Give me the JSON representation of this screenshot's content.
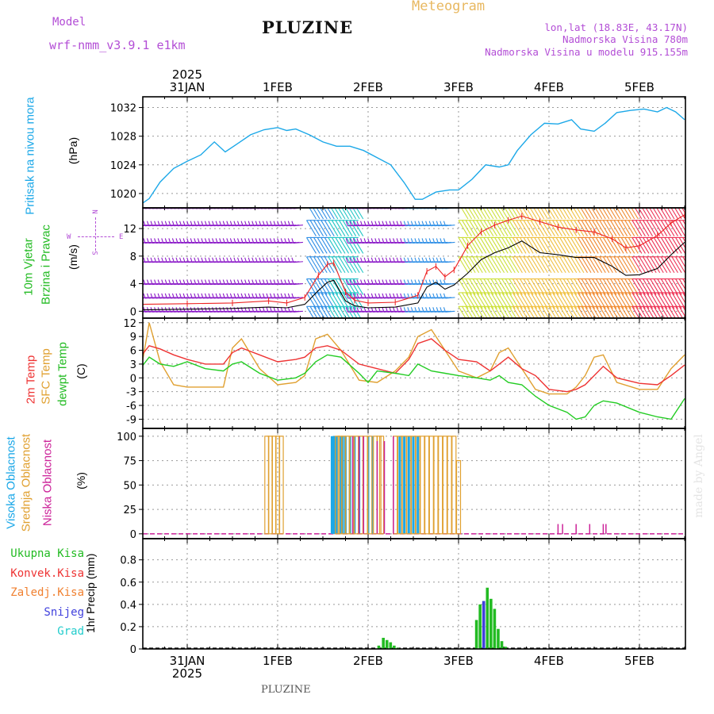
{
  "header": {
    "model_label": "Model",
    "model_name": "wrf-nmm_v3.9.1  e1km",
    "station": "PLUZINE",
    "product": "Meteogram",
    "coords": "lon,lat (18.83E, 43.17N)",
    "elevation": "Nadmorska Visina 780m",
    "model_elevation": "Nadmorska Visina u modelu 915.155m"
  },
  "footer": {
    "station": "PLUZINE",
    "credit": "made by Angel"
  },
  "colors": {
    "pressure": "#1ca8e8",
    "temp2m": "#ee3333",
    "sfc": "#e0a030",
    "dew": "#22cc22",
    "convective": "#ee3333",
    "frozen": "#f08030",
    "snow": "#4040dd",
    "grad": "#22cccc",
    "high_cloud": "#1ca8e8",
    "mid_cloud": "#e0a030",
    "low_cloud": "#cc2299",
    "wind_speed": "#000000",
    "gust": "#ee2222",
    "total_precip": "#22bb22"
  },
  "time_axis": {
    "top_year": "2025",
    "bottom_year": "2025",
    "days": [
      "31JAN",
      "1FEB",
      "2FEB",
      "3FEB",
      "4FEB",
      "5FEB"
    ]
  },
  "chart_data": [
    {
      "id": "pressure",
      "type": "line",
      "ylabel": "Pritisak na nivou mora",
      "unit": "(hPa)",
      "ylim": [
        1018,
        1033.5
      ],
      "yticks": [
        1020,
        1024,
        1028,
        1032
      ],
      "series": [
        {
          "x": [
            -0.5,
            -0.42,
            -0.3,
            -0.15,
            0,
            0.15,
            0.3,
            0.42,
            0.55,
            0.7,
            0.85,
            1.0,
            1.1,
            1.2,
            1.35,
            1.5,
            1.65,
            1.8,
            1.95,
            2.1,
            2.25,
            2.4,
            2.52,
            2.6,
            2.75,
            2.9,
            3.0,
            3.15,
            3.3,
            3.45,
            3.55,
            3.65,
            3.8,
            3.95,
            4.1,
            4.25,
            4.35,
            4.5,
            4.62,
            4.75,
            4.9,
            5.05,
            5.2,
            5.3,
            5.4,
            5.5
          ],
          "y": [
            1018.6,
            1019.3,
            1021.6,
            1023.5,
            1024.5,
            1025.4,
            1027.2,
            1025.8,
            1026.9,
            1028.2,
            1028.9,
            1029.2,
            1028.8,
            1029.0,
            1028.2,
            1027.2,
            1026.6,
            1026.6,
            1026.0,
            1025.0,
            1024.0,
            1021.5,
            1019.2,
            1019.2,
            1020.2,
            1020.5,
            1020.5,
            1022.0,
            1024.0,
            1023.7,
            1024.0,
            1026.0,
            1028.2,
            1029.8,
            1029.7,
            1030.3,
            1029.0,
            1028.7,
            1029.8,
            1031.3,
            1031.6,
            1031.8,
            1031.4,
            1032.0,
            1031.4,
            1030.3
          ]
        }
      ]
    },
    {
      "id": "wind",
      "type": "line",
      "ylabel": [
        "10m Vjetar",
        "Brzina i Pravac"
      ],
      "unit": "(m/s)",
      "ylim": [
        -1,
        15
      ],
      "yticks": [
        0,
        4,
        8,
        12
      ],
      "compass": [
        "N",
        "E",
        "S",
        "W"
      ],
      "series": [
        {
          "x": [
            -0.5,
            0,
            0.5,
            0.9,
            1.1,
            1.3,
            1.45,
            1.55,
            1.62,
            1.75,
            1.85,
            2.0,
            2.3,
            2.55,
            2.65,
            2.75,
            2.85,
            2.95,
            3.1,
            3.25,
            3.4,
            3.55,
            3.7,
            3.9,
            4.1,
            4.3,
            4.5,
            4.7,
            4.85,
            5.0,
            5.2,
            5.35,
            5.5
          ],
          "y": [
            0.2,
            0.3,
            0.4,
            0.6,
            0.5,
            1.0,
            3.0,
            4.2,
            4.5,
            1.5,
            0.8,
            0.5,
            0.6,
            1.2,
            3.5,
            4.2,
            3.2,
            3.8,
            5.5,
            7.5,
            8.5,
            9.2,
            10.2,
            8.5,
            8.2,
            7.8,
            7.8,
            6.5,
            5.2,
            5.3,
            6.2,
            8.2,
            10.0
          ]
        },
        {
          "x": [
            -0.5,
            0,
            0.5,
            0.9,
            1.1,
            1.3,
            1.45,
            1.55,
            1.62,
            1.75,
            1.85,
            2.0,
            2.3,
            2.55,
            2.65,
            2.75,
            2.85,
            2.95,
            3.1,
            3.25,
            3.4,
            3.55,
            3.7,
            3.9,
            4.1,
            4.3,
            4.5,
            4.7,
            4.85,
            5.0,
            5.2,
            5.35,
            5.5
          ],
          "y": [
            1.0,
            1.1,
            1.2,
            1.5,
            1.2,
            2.0,
            5.2,
            6.8,
            7.0,
            2.8,
            1.6,
            1.2,
            1.3,
            2.3,
            5.8,
            6.5,
            5.0,
            6.0,
            9.5,
            11.5,
            12.5,
            13.2,
            13.8,
            13.0,
            12.2,
            11.8,
            11.5,
            10.5,
            9.2,
            9.5,
            11.0,
            12.8,
            14.0
          ]
        }
      ]
    },
    {
      "id": "temperature",
      "type": "line",
      "ylabel": [
        "2m Temp",
        "SFC Temp",
        "dewpt Temp"
      ],
      "unit": "(C)",
      "ylim": [
        -11,
        13
      ],
      "yticks": [
        12,
        9,
        6,
        3,
        0,
        -3,
        -6,
        -9
      ],
      "series": [
        {
          "x": [
            -0.5,
            -0.42,
            -0.3,
            -0.15,
            0,
            0.2,
            0.4,
            0.5,
            0.6,
            0.8,
            1.0,
            1.2,
            1.3,
            1.42,
            1.55,
            1.7,
            1.9,
            2.1,
            2.3,
            2.45,
            2.55,
            2.7,
            2.85,
            3.0,
            3.2,
            3.35,
            3.45,
            3.55,
            3.7,
            3.85,
            4.0,
            4.2,
            4.3,
            4.4,
            4.5,
            4.6,
            4.75,
            5.0,
            5.2,
            5.35,
            5.5
          ],
          "y": [
            5.0,
            7.0,
            6.3,
            5.0,
            4.0,
            3.0,
            3.0,
            5.5,
            6.5,
            5.0,
            3.5,
            4.0,
            4.5,
            6.5,
            7.0,
            6.0,
            3.0,
            2.0,
            1.0,
            4.0,
            7.5,
            8.5,
            6.0,
            4.0,
            3.5,
            1.5,
            3.0,
            4.5,
            2.0,
            0.5,
            -2.5,
            -3.0,
            -2.5,
            -1.5,
            0.5,
            2.5,
            0.0,
            -1.2,
            -1.5,
            0.5,
            2.8
          ]
        },
        {
          "x": [
            -0.5,
            -0.42,
            -0.3,
            -0.15,
            0,
            0.2,
            0.4,
            0.5,
            0.6,
            0.8,
            1.0,
            1.2,
            1.3,
            1.42,
            1.55,
            1.7,
            1.9,
            2.1,
            2.3,
            2.45,
            2.55,
            2.7,
            2.85,
            3.0,
            3.2,
            3.35,
            3.45,
            3.55,
            3.7,
            3.85,
            4.0,
            4.2,
            4.3,
            4.4,
            4.5,
            4.6,
            4.75,
            5.0,
            5.2,
            5.35,
            5.5
          ],
          "y": [
            3.0,
            12.0,
            3.5,
            -1.5,
            -2.0,
            -2.0,
            -2.0,
            6.5,
            8.5,
            2.0,
            -1.5,
            -1.0,
            0.5,
            8.5,
            9.5,
            6.0,
            -0.5,
            -1.0,
            1.5,
            4.5,
            9.0,
            10.5,
            6.0,
            1.5,
            0.0,
            1.5,
            5.5,
            6.5,
            2.0,
            -2.5,
            -3.5,
            -3.5,
            -2.0,
            0.5,
            4.5,
            5.0,
            -1.0,
            -2.5,
            -2.5,
            2.0,
            5.0
          ]
        },
        {
          "x": [
            -0.5,
            -0.42,
            -0.3,
            -0.15,
            0,
            0.2,
            0.4,
            0.5,
            0.6,
            0.8,
            1.0,
            1.2,
            1.3,
            1.42,
            1.55,
            1.7,
            1.9,
            2.0,
            2.1,
            2.3,
            2.45,
            2.55,
            2.7,
            2.85,
            3.0,
            3.2,
            3.35,
            3.45,
            3.55,
            3.7,
            3.85,
            4.0,
            4.2,
            4.3,
            4.4,
            4.5,
            4.6,
            4.75,
            5.0,
            5.2,
            5.35,
            5.5
          ],
          "y": [
            2.5,
            4.5,
            3.0,
            2.5,
            3.5,
            2.0,
            1.5,
            3.0,
            3.5,
            1.0,
            -0.5,
            0.0,
            1.0,
            3.5,
            5.0,
            4.5,
            1.0,
            -1.0,
            1.5,
            1.0,
            0.5,
            3.0,
            1.5,
            1.0,
            0.5,
            0.0,
            -0.5,
            0.5,
            -1.0,
            -1.5,
            -4.0,
            -6.0,
            -7.5,
            -9.0,
            -8.5,
            -6.0,
            -5.0,
            -5.5,
            -7.5,
            -8.5,
            -9.0,
            -4.5
          ]
        }
      ]
    },
    {
      "id": "clouds",
      "type": "bar",
      "ylabel": [
        "Visoka Oblacnost",
        "Srednja Oblacnost",
        "Niska Oblacnost"
      ],
      "unit": "(%)",
      "ylim": [
        -5,
        108
      ],
      "yticks": [
        0,
        25,
        50,
        75,
        100
      ],
      "series": [
        {
          "name": "high",
          "x": [
            1.6,
            1.61,
            1.62,
            1.63,
            1.65,
            1.7,
            1.72,
            1.75,
            1.8,
            1.85,
            1.9,
            2.0,
            2.05,
            2.35,
            2.4,
            2.45,
            2.5,
            2.55
          ],
          "y": [
            100,
            100,
            100,
            100,
            100,
            100,
            100,
            100,
            100,
            100,
            100,
            100,
            100,
            100,
            100,
            100,
            100,
            100
          ]
        },
        {
          "name": "mid",
          "x": [
            0.88,
            0.92,
            0.96,
            1.0,
            1.04,
            1.66,
            1.69,
            1.73,
            1.77,
            1.82,
            1.87,
            1.92,
            1.97,
            2.02,
            2.08,
            2.12,
            2.15,
            2.3,
            2.35,
            2.4,
            2.45,
            2.5,
            2.55,
            2.6,
            2.65,
            2.7,
            2.75,
            2.8,
            2.85,
            2.9,
            2.95,
            3.0
          ],
          "y": [
            100,
            100,
            100,
            100,
            100,
            100,
            100,
            100,
            100,
            100,
            100,
            100,
            100,
            100,
            100,
            100,
            100,
            100,
            100,
            100,
            100,
            100,
            100,
            100,
            100,
            100,
            100,
            100,
            100,
            100,
            100,
            75
          ]
        },
        {
          "name": "low",
          "x": [
            1.83,
            1.9,
            1.95,
            2.1,
            2.18,
            2.28,
            4.1,
            4.15,
            4.3,
            4.45,
            4.6,
            4.63
          ],
          "y": [
            100,
            100,
            100,
            95,
            95,
            100,
            10,
            10,
            10,
            10,
            10,
            10
          ]
        }
      ]
    },
    {
      "id": "precip",
      "type": "bar",
      "legend": [
        "Ukupna  Kisa",
        "Konvek.Kisa",
        "Zaledj.Kisa",
        "Snijeg",
        "Grad"
      ],
      "ylabel": "1hr Precip",
      "unit": "(mm)",
      "ylim": [
        0,
        0.99
      ],
      "yticks": [
        0,
        0.2,
        0.4,
        0.6,
        0.8
      ],
      "series": [
        {
          "name": "total",
          "x": [
            2.12,
            2.17,
            2.21,
            2.25,
            2.29,
            2.33,
            3.2,
            3.24,
            3.28,
            3.32,
            3.36,
            3.4,
            3.44,
            3.48,
            3.52
          ],
          "y": [
            0.03,
            0.1,
            0.08,
            0.06,
            0.03,
            0.01,
            0.26,
            0.4,
            0.43,
            0.55,
            0.45,
            0.36,
            0.18,
            0.07,
            0.02
          ]
        },
        {
          "name": "snow",
          "x": [
            3.28
          ],
          "y": [
            0.43
          ]
        }
      ]
    }
  ]
}
